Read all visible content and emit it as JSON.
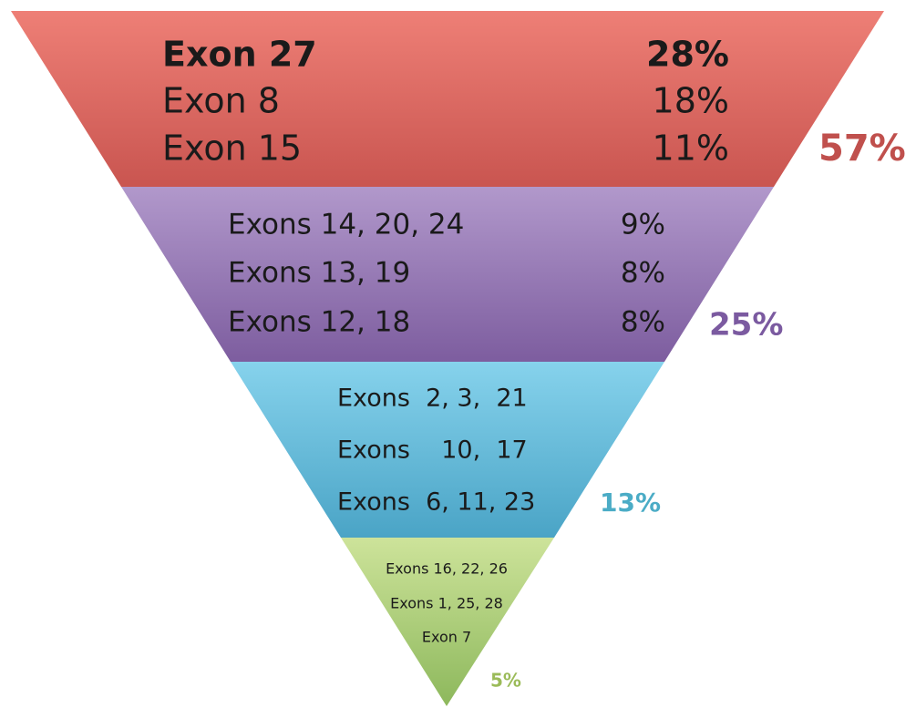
{
  "tiers": [
    {
      "rows": [
        {
          "label": "Exon 27",
          "percent": "28%"
        },
        {
          "label": "Exon 8",
          "percent": "18%"
        },
        {
          "label": "Exon 15",
          "percent": "11%"
        }
      ],
      "total": "57%"
    },
    {
      "rows": [
        {
          "label": "Exons 14, 20, 24",
          "percent": "9%"
        },
        {
          "label": "Exons 13, 19",
          "percent": "8%"
        },
        {
          "label": "Exons 12, 18",
          "percent": "8%"
        }
      ],
      "total": "25%"
    },
    {
      "rows": [
        {
          "label": "Exons  2, 3,  21"
        },
        {
          "label": "Exons    10,  17"
        },
        {
          "label": "Exons  6, 11, 23"
        }
      ],
      "total": "13%"
    },
    {
      "rows": [
        {
          "label": "Exons 16, 22, 26"
        },
        {
          "label": "Exons 1, 25, 28"
        },
        {
          "label": "Exon 7"
        }
      ],
      "total": "5%"
    }
  ]
}
